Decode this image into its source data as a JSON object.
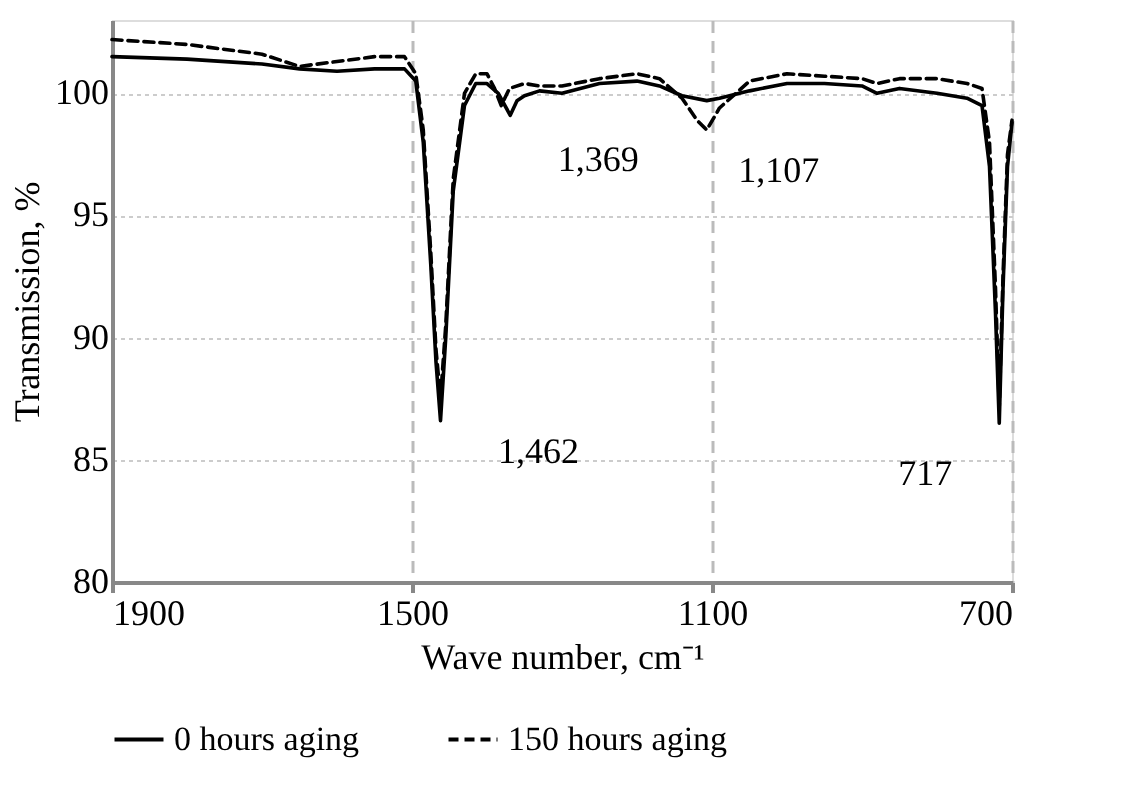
{
  "chart_data": {
    "type": "line",
    "xlabel": "Wave number, cm⁻¹",
    "ylabel": "Transmission, %",
    "xlim": [
      1900,
      700
    ],
    "xticks": [
      1900,
      1500,
      1100,
      700
    ],
    "ylim": [
      80,
      103
    ],
    "yticks": [
      80,
      85,
      90,
      95,
      100
    ],
    "grid": true,
    "legend": "bottom",
    "marker": "none",
    "annotations": [
      {
        "text": "1,462",
        "x": 1462,
        "y": 86.6
      },
      {
        "text": "1,369",
        "x": 1369,
        "y": 99.1
      },
      {
        "text": "1,107",
        "x": 1107,
        "y": 98.5
      },
      {
        "text": "717",
        "x": 717,
        "y": 86.5
      }
    ],
    "series": [
      {
        "name": "0 hours aging",
        "color": "#000000",
        "line_style": "solid",
        "x": [
          1900,
          1800,
          1700,
          1650,
          1600,
          1550,
          1510,
          1495,
          1485,
          1475,
          1468,
          1462,
          1455,
          1445,
          1430,
          1415,
          1400,
          1385,
          1369,
          1360,
          1350,
          1330,
          1300,
          1250,
          1200,
          1170,
          1140,
          1107,
          1090,
          1050,
          1000,
          950,
          900,
          880,
          850,
          800,
          760,
          740,
          730,
          722,
          717,
          712,
          706,
          700
        ],
        "values": [
          101.5,
          101.4,
          101.2,
          101.0,
          100.9,
          101.0,
          101.0,
          100.5,
          98.0,
          93.0,
          89.0,
          86.6,
          90.0,
          96.0,
          99.5,
          100.4,
          100.4,
          100.0,
          99.1,
          99.7,
          99.9,
          100.1,
          100.0,
          100.4,
          100.5,
          100.3,
          99.9,
          99.7,
          99.8,
          100.1,
          100.4,
          100.4,
          100.3,
          100.0,
          100.2,
          100.0,
          99.8,
          99.5,
          97.0,
          91.0,
          86.5,
          92.0,
          97.0,
          98.8
        ]
      },
      {
        "name": "150 hours aging",
        "color": "#000000",
        "line_style": "dashed",
        "x": [
          1900,
          1800,
          1700,
          1650,
          1600,
          1550,
          1510,
          1495,
          1485,
          1475,
          1468,
          1462,
          1455,
          1445,
          1430,
          1415,
          1400,
          1390,
          1381,
          1370,
          1350,
          1330,
          1300,
          1250,
          1200,
          1170,
          1140,
          1120,
          1107,
          1090,
          1050,
          1000,
          950,
          900,
          880,
          850,
          800,
          760,
          740,
          730,
          722,
          717,
          712,
          706,
          700
        ],
        "values": [
          102.2,
          102.0,
          101.6,
          101.1,
          101.3,
          101.5,
          101.5,
          100.8,
          98.5,
          93.5,
          89.5,
          87.5,
          90.5,
          96.5,
          100.0,
          100.8,
          100.8,
          100.2,
          99.5,
          100.2,
          100.4,
          100.3,
          100.3,
          100.6,
          100.8,
          100.6,
          99.8,
          98.9,
          98.5,
          99.4,
          100.5,
          100.8,
          100.7,
          100.6,
          100.4,
          100.6,
          100.6,
          100.4,
          100.2,
          98.0,
          92.0,
          87.2,
          92.5,
          97.5,
          98.9
        ]
      }
    ]
  }
}
